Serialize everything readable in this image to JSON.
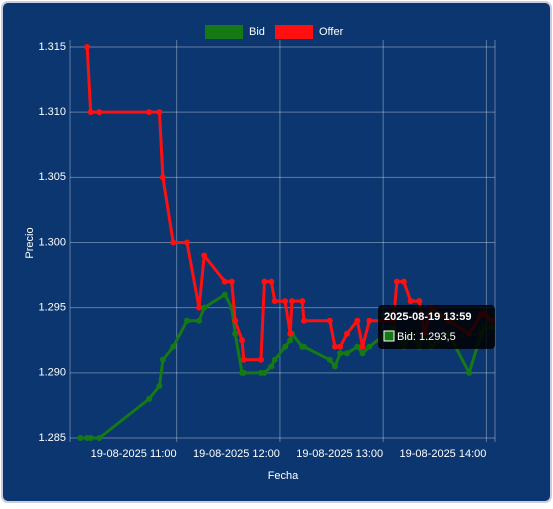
{
  "chart_data": {
    "type": "line",
    "x_label": "Fecha",
    "y_label": "Precio",
    "x": [
      "2025-08-19 10:04",
      "2025-08-19 10:08",
      "2025-08-19 10:10",
      "2025-08-19 10:15",
      "2025-08-19 10:44",
      "2025-08-19 10:50",
      "2025-08-19 10:52",
      "2025-08-19 10:58",
      "2025-08-19 11:06",
      "2025-08-19 11:13",
      "2025-08-19 11:16",
      "2025-08-19 11:28",
      "2025-08-19 11:32",
      "2025-08-19 11:34",
      "2025-08-19 11:38",
      "2025-08-19 11:39",
      "2025-08-19 11:49",
      "2025-08-19 11:51",
      "2025-08-19 11:55",
      "2025-08-19 11:57",
      "2025-08-19 12:03",
      "2025-08-19 12:06",
      "2025-08-19 12:07",
      "2025-08-19 12:13",
      "2025-08-19 12:14",
      "2025-08-19 12:29",
      "2025-08-19 12:32",
      "2025-08-19 12:35",
      "2025-08-19 12:39",
      "2025-08-19 12:45",
      "2025-08-19 12:48",
      "2025-08-19 12:52",
      "2025-08-19 13:06",
      "2025-08-19 13:08",
      "2025-08-19 13:12",
      "2025-08-19 13:16",
      "2025-08-19 13:21",
      "2025-08-19 13:24",
      "2025-08-19 13:28",
      "2025-08-19 13:38",
      "2025-08-19 13:50",
      "2025-08-19 13:57",
      "2025-08-19 13:59",
      "2025-08-19 14:03"
    ],
    "series": [
      {
        "name": "Bid",
        "color": "#157a15",
        "values": [
          1.285,
          1.285,
          1.285,
          1.285,
          1.288,
          1.289,
          1.291,
          1.292,
          1.294,
          1.294,
          1.295,
          1.296,
          1.295,
          1.293,
          1.29,
          1.29,
          1.29,
          1.29,
          1.2905,
          1.291,
          1.292,
          1.2925,
          1.293,
          1.292,
          1.292,
          1.291,
          1.2905,
          1.2915,
          1.2915,
          1.292,
          1.2915,
          1.292,
          1.2935,
          1.293,
          1.292,
          1.293,
          1.292,
          1.293,
          1.292,
          1.293,
          1.29,
          1.293,
          1.2935,
          1.2935
        ]
      },
      {
        "name": "Offer",
        "color": "#ff1010",
        "values": [
          null,
          1.315,
          1.31,
          1.31,
          1.31,
          1.31,
          1.305,
          1.3,
          1.3,
          1.295,
          1.299,
          1.297,
          1.297,
          1.294,
          1.2925,
          1.291,
          1.291,
          1.297,
          1.297,
          1.2955,
          1.2955,
          1.293,
          1.2955,
          1.2955,
          1.294,
          1.294,
          1.292,
          1.292,
          1.293,
          1.294,
          1.292,
          1.294,
          1.294,
          1.297,
          1.297,
          1.2955,
          1.2955,
          1.293,
          1.295,
          1.294,
          1.293,
          1.2945,
          1.2945,
          1.294
        ]
      }
    ],
    "xlim": [
      "2025-08-19 09:58",
      "2025-08-19 14:05"
    ],
    "xticks": [
      {
        "value": "2025-08-19 11:00",
        "label": "19-08-2025 11:00"
      },
      {
        "value": "2025-08-19 12:00",
        "label": "19-08-2025 12:00"
      },
      {
        "value": "2025-08-19 13:00",
        "label": "19-08-2025 13:00"
      },
      {
        "value": "2025-08-19 14:00",
        "label": "19-08-2025 14:00"
      }
    ],
    "ylim": [
      1.285,
      1.315
    ],
    "yticks": [
      1.285,
      {
        "value": 1.29,
        "label": "1.290"
      },
      1.295,
      {
        "value": 1.3,
        "label": "1.300"
      },
      1.305,
      {
        "value": 1.31,
        "label": "1.310"
      },
      1.315
    ],
    "grid": true,
    "legend": "top",
    "tooltip": {
      "title": "2025-08-19 13:59",
      "label": "Bid: 1.293,5"
    }
  }
}
